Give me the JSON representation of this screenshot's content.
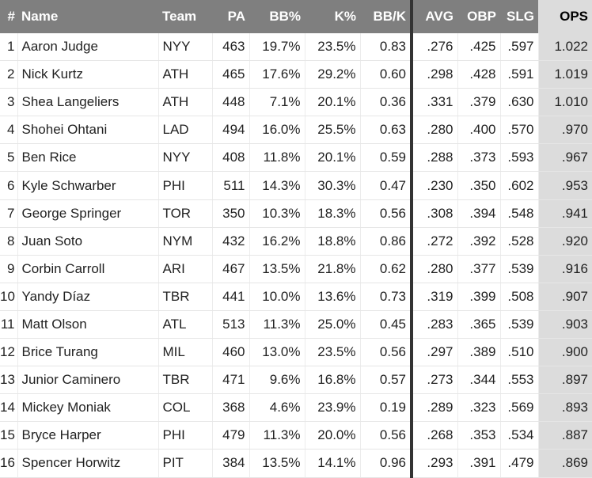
{
  "table": {
    "header": [
      "#",
      "Name",
      "Team",
      "PA",
      "BB%",
      "K%",
      "BB/K",
      "AVG",
      "OBP",
      "SLG",
      "OPS"
    ],
    "rows": [
      [
        "1",
        "Aaron Judge",
        "NYY",
        "463",
        "19.7%",
        "23.5%",
        "0.83",
        ".276",
        ".425",
        ".597",
        "1.022"
      ],
      [
        "2",
        "Nick Kurtz",
        "ATH",
        "465",
        "17.6%",
        "29.2%",
        "0.60",
        ".298",
        ".428",
        ".591",
        "1.019"
      ],
      [
        "3",
        "Shea Langeliers",
        "ATH",
        "448",
        "7.1%",
        "20.1%",
        "0.36",
        ".331",
        ".379",
        ".630",
        "1.010"
      ],
      [
        "4",
        "Shohei Ohtani",
        "LAD",
        "494",
        "16.0%",
        "25.5%",
        "0.63",
        ".280",
        ".400",
        ".570",
        ".970"
      ],
      [
        "5",
        "Ben Rice",
        "NYY",
        "408",
        "11.8%",
        "20.1%",
        "0.59",
        ".288",
        ".373",
        ".593",
        ".967"
      ],
      [
        "6",
        "Kyle Schwarber",
        "PHI",
        "511",
        "14.3%",
        "30.3%",
        "0.47",
        ".230",
        ".350",
        ".602",
        ".953"
      ],
      [
        "7",
        "George Springer",
        "TOR",
        "350",
        "10.3%",
        "18.3%",
        "0.56",
        ".308",
        ".394",
        ".548",
        ".941"
      ],
      [
        "8",
        "Juan Soto",
        "NYM",
        "432",
        "16.2%",
        "18.8%",
        "0.86",
        ".272",
        ".392",
        ".528",
        ".920"
      ],
      [
        "9",
        "Corbin Carroll",
        "ARI",
        "467",
        "13.5%",
        "21.8%",
        "0.62",
        ".280",
        ".377",
        ".539",
        ".916"
      ],
      [
        "10",
        "Yandy Díaz",
        "TBR",
        "441",
        "10.0%",
        "13.6%",
        "0.73",
        ".319",
        ".399",
        ".508",
        ".907"
      ],
      [
        "11",
        "Matt Olson",
        "ATL",
        "513",
        "11.3%",
        "25.0%",
        "0.45",
        ".283",
        ".365",
        ".539",
        ".903"
      ],
      [
        "12",
        "Brice Turang",
        "MIL",
        "460",
        "13.0%",
        "23.5%",
        "0.56",
        ".297",
        ".389",
        ".510",
        ".900"
      ],
      [
        "13",
        "Junior Caminero",
        "TBR",
        "471",
        "9.6%",
        "16.8%",
        "0.57",
        ".273",
        ".344",
        ".553",
        ".897"
      ],
      [
        "14",
        "Mickey Moniak",
        "COL",
        "368",
        "4.6%",
        "23.9%",
        "0.19",
        ".289",
        ".323",
        ".569",
        ".893"
      ],
      [
        "15",
        "Bryce Harper",
        "PHI",
        "479",
        "11.3%",
        "20.0%",
        "0.56",
        ".268",
        ".353",
        ".534",
        ".887"
      ],
      [
        "16",
        "Spencer Horwitz",
        "PIT",
        "384",
        "13.5%",
        "14.1%",
        "0.96",
        ".293",
        ".391",
        ".479",
        ".869"
      ]
    ]
  }
}
